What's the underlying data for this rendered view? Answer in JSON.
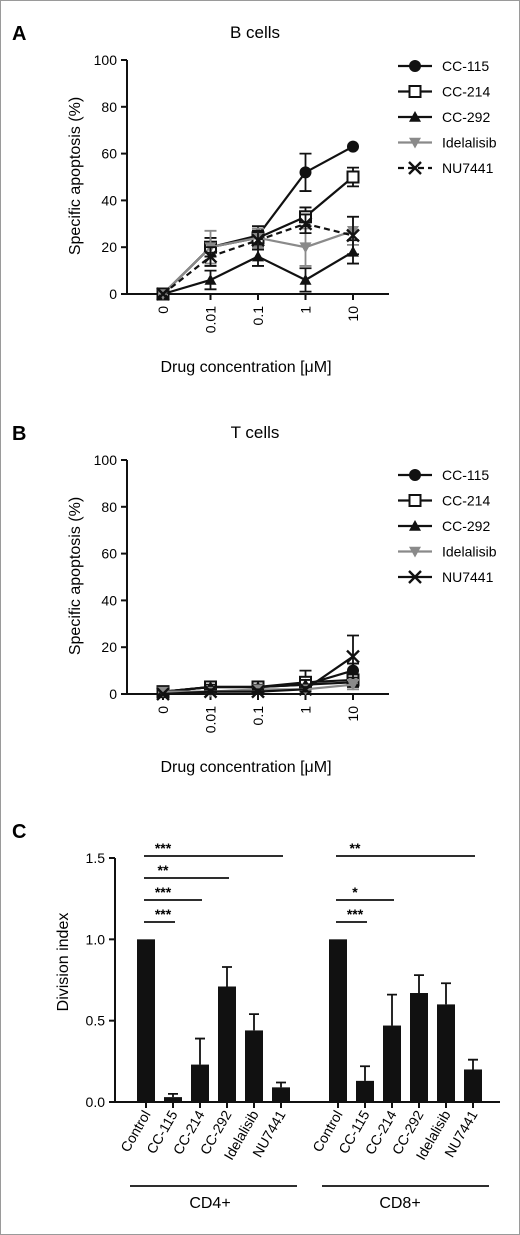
{
  "chart_data": [
    {
      "panel": "A",
      "type": "line",
      "title": "B cells",
      "xlabel": "Drug concentration [μM]",
      "ylabel": "Specific apoptosis (%)",
      "categories": [
        "0",
        "0.01",
        "0.1",
        "1",
        "10"
      ],
      "yticks": [
        "0",
        "20",
        "40",
        "60",
        "80",
        "100"
      ],
      "ylim": [
        0,
        100
      ],
      "series": [
        {
          "name": "CC-115",
          "marker": "circle",
          "color": "#111111",
          "dash": "solid",
          "values": [
            0,
            20,
            25,
            52,
            63
          ],
          "err": [
            0,
            4,
            4,
            8,
            0
          ]
        },
        {
          "name": "CC-214",
          "marker": "square-open",
          "color": "#111111",
          "dash": "solid",
          "values": [
            0,
            20,
            24,
            33,
            50
          ],
          "err": [
            0,
            4,
            4,
            4,
            4
          ]
        },
        {
          "name": "CC-292",
          "marker": "triangle",
          "color": "#111111",
          "dash": "solid",
          "values": [
            0,
            6,
            16,
            6,
            18
          ],
          "err": [
            0,
            4,
            4,
            5,
            5
          ]
        },
        {
          "name": "Idelalisib",
          "marker": "triangle-down",
          "color": "#8a8a8a",
          "dash": "solid",
          "values": [
            0,
            20,
            24,
            20,
            27
          ],
          "err": [
            0,
            7,
            4,
            8,
            6
          ]
        },
        {
          "name": "NU7441",
          "marker": "x",
          "color": "#111111",
          "dash": "dashed",
          "values": [
            0,
            16,
            23,
            30,
            25
          ],
          "err": [
            0,
            4,
            4,
            4,
            8
          ]
        }
      ]
    },
    {
      "panel": "B",
      "type": "line",
      "title": "T cells",
      "xlabel": "Drug concentration [μM]",
      "ylabel": "Specific apoptosis (%)",
      "categories": [
        "0",
        "0.01",
        "0.1",
        "1",
        "10"
      ],
      "yticks": [
        "0",
        "20",
        "40",
        "60",
        "80",
        "100"
      ],
      "ylim": [
        0,
        100
      ],
      "series": [
        {
          "name": "CC-115",
          "marker": "circle",
          "color": "#111111",
          "dash": "solid",
          "values": [
            1,
            3,
            3,
            4,
            10
          ],
          "err": [
            0,
            1,
            1,
            2,
            3
          ]
        },
        {
          "name": "CC-214",
          "marker": "square-open",
          "color": "#111111",
          "dash": "solid",
          "values": [
            1,
            3,
            3,
            5,
            6
          ],
          "err": [
            0,
            1,
            1,
            5,
            2
          ]
        },
        {
          "name": "CC-292",
          "marker": "triangle",
          "color": "#111111",
          "dash": "solid",
          "values": [
            1,
            3,
            3,
            4,
            5
          ],
          "err": [
            0,
            1,
            1,
            2,
            2
          ]
        },
        {
          "name": "Idelalisib",
          "marker": "triangle-down",
          "color": "#8a8a8a",
          "dash": "solid",
          "values": [
            1,
            1,
            2,
            2,
            4
          ],
          "err": [
            0,
            1,
            1,
            1,
            2
          ]
        },
        {
          "name": "NU7441",
          "marker": "x",
          "color": "#111111",
          "dash": "solid",
          "values": [
            0,
            1,
            1,
            2,
            16
          ],
          "err": [
            0,
            1,
            1,
            1,
            9
          ]
        }
      ]
    },
    {
      "panel": "C",
      "type": "bar",
      "ylabel": "Division index",
      "ylim": [
        0,
        1.5
      ],
      "yticks": [
        "0.0",
        "0.5",
        "1.0",
        "1.5"
      ],
      "groups": [
        {
          "name": "CD4+",
          "categories": [
            "Control",
            "CC-115",
            "CC-214",
            "CC-292",
            "Idelalisib",
            "NU7441"
          ],
          "values": [
            1.0,
            0.03,
            0.23,
            0.71,
            0.44,
            0.09
          ],
          "err": [
            0,
            0.02,
            0.16,
            0.12,
            0.1,
            0.03
          ]
        },
        {
          "name": "CD8+",
          "categories": [
            "Control",
            "CC-115",
            "CC-214",
            "CC-292",
            "Idelalisib",
            "NU7441"
          ],
          "values": [
            1.0,
            0.13,
            0.47,
            0.67,
            0.6,
            0.2
          ],
          "err": [
            0,
            0.09,
            0.19,
            0.11,
            0.13,
            0.06
          ]
        }
      ],
      "significance": [
        {
          "group": 0,
          "from": 0,
          "to": 5,
          "label": "***"
        },
        {
          "group": 0,
          "from": 0,
          "to": 3,
          "label": "**"
        },
        {
          "group": 0,
          "from": 0,
          "to": 2,
          "label": "***"
        },
        {
          "group": 0,
          "from": 0,
          "to": 1,
          "label": "***"
        },
        {
          "group": 1,
          "from": 0,
          "to": 5,
          "label": "**"
        },
        {
          "group": 1,
          "from": 0,
          "to": 2,
          "label": "*"
        },
        {
          "group": 1,
          "from": 0,
          "to": 1,
          "label": "***"
        }
      ]
    }
  ]
}
